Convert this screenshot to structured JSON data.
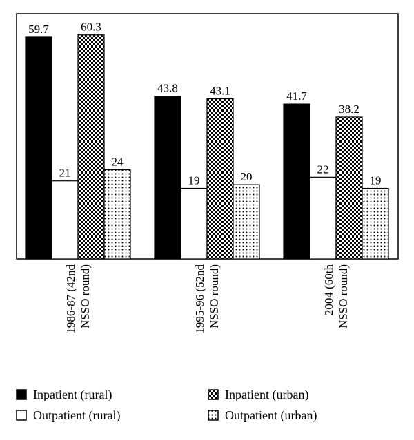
{
  "chart_data": {
    "type": "bar",
    "categories": [
      "1986-87 (42nd NSSO round)",
      "1995-96 (52nd NSSO round)",
      "2004 (60th NSSO round)"
    ],
    "category_lines": [
      [
        "1986-87 (42nd",
        "NSSO round)"
      ],
      [
        "1995-96 (52nd",
        "NSSO round)"
      ],
      [
        "2004 (60th",
        "NSSO round)"
      ]
    ],
    "series": [
      {
        "name": "Inpatient (rural)",
        "values": [
          59.7,
          43.8,
          41.7
        ],
        "value_labels": [
          "59.7",
          "43.8",
          "41.7"
        ],
        "fill": "solid"
      },
      {
        "name": "Outpatient (rural)",
        "values": [
          21,
          19,
          22
        ],
        "value_labels": [
          "21",
          "19",
          "22"
        ],
        "fill": "white"
      },
      {
        "name": "Inpatient (urban)",
        "values": [
          60.3,
          43.1,
          38.2
        ],
        "value_labels": [
          "60.3",
          "43.1",
          "38.2"
        ],
        "fill": "checker"
      },
      {
        "name": "Outpatient (urban)",
        "values": [
          24,
          20,
          19
        ],
        "value_labels": [
          "24",
          "20",
          "19"
        ],
        "fill": "dots"
      }
    ],
    "ylim": [
      0,
      66
    ],
    "grid": false,
    "legend_position": "bottom",
    "colors": {
      "ink": "#000000",
      "background": "#ffffff"
    }
  }
}
